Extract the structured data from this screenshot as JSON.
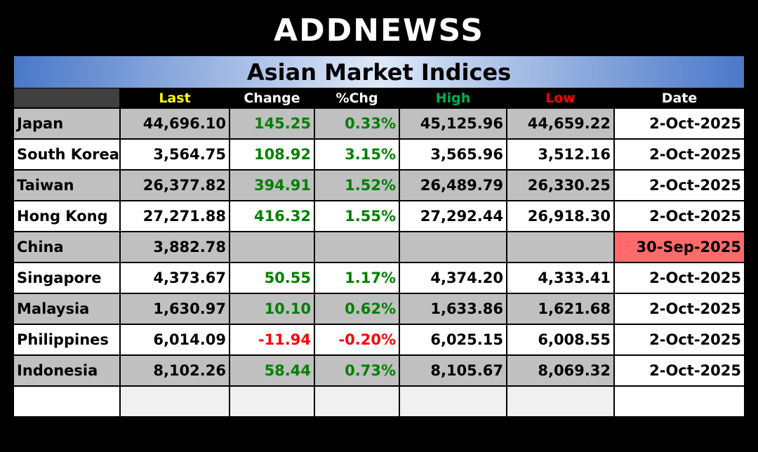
{
  "logo": "ADDNEWSS",
  "title": "Asian Market Indices",
  "table": {
    "headers": [
      "Last",
      "Change",
      "%Chg",
      "High",
      "Low",
      "Date"
    ],
    "header_colors": [
      "#ffff00",
      "#ffffff",
      "#ffffff",
      "#00b050",
      "#ff0000",
      "#ffffff"
    ],
    "rows": [
      {
        "name": "Japan",
        "last": "44,696.10",
        "change": "145.25",
        "pct": "0.33%",
        "high": "45,125.96",
        "low": "44,659.22",
        "date": "2-Oct-2025"
      },
      {
        "name": "South Korea",
        "last": "3,564.75",
        "change": "108.92",
        "pct": "3.15%",
        "high": "3,565.96",
        "low": "3,512.16",
        "date": "2-Oct-2025"
      },
      {
        "name": "Taiwan",
        "last": "26,377.82",
        "change": "394.91",
        "pct": "1.52%",
        "high": "26,489.79",
        "low": "26,330.25",
        "date": "2-Oct-2025"
      },
      {
        "name": "Hong Kong",
        "last": "27,271.88",
        "change": "416.32",
        "pct": "1.55%",
        "high": "27,292.44",
        "low": "26,918.30",
        "date": "2-Oct-2025"
      },
      {
        "name": "China",
        "last": "3,882.78",
        "date": "30-Sep-2025",
        "stale": true
      },
      {
        "name": "Singapore",
        "last": "4,373.67",
        "change": "50.55",
        "pct": "1.17%",
        "high": "4,374.20",
        "low": "4,333.41",
        "date": "2-Oct-2025"
      },
      {
        "name": "Malaysia",
        "last": "1,630.97",
        "change": "10.10",
        "pct": "0.62%",
        "high": "1,633.86",
        "low": "1,621.68",
        "date": "2-Oct-2025"
      },
      {
        "name": "Philippines",
        "last": "6,014.09",
        "change": "-11.94",
        "pct": "-0.20%",
        "high": "6,025.15",
        "low": "6,008.55",
        "date": "2-Oct-2025"
      },
      {
        "name": "Indonesia",
        "last": "8,102.26",
        "change": "58.44",
        "pct": "0.73%",
        "high": "8,105.67",
        "low": "8,069.32",
        "date": "2-Oct-2025"
      }
    ]
  }
}
